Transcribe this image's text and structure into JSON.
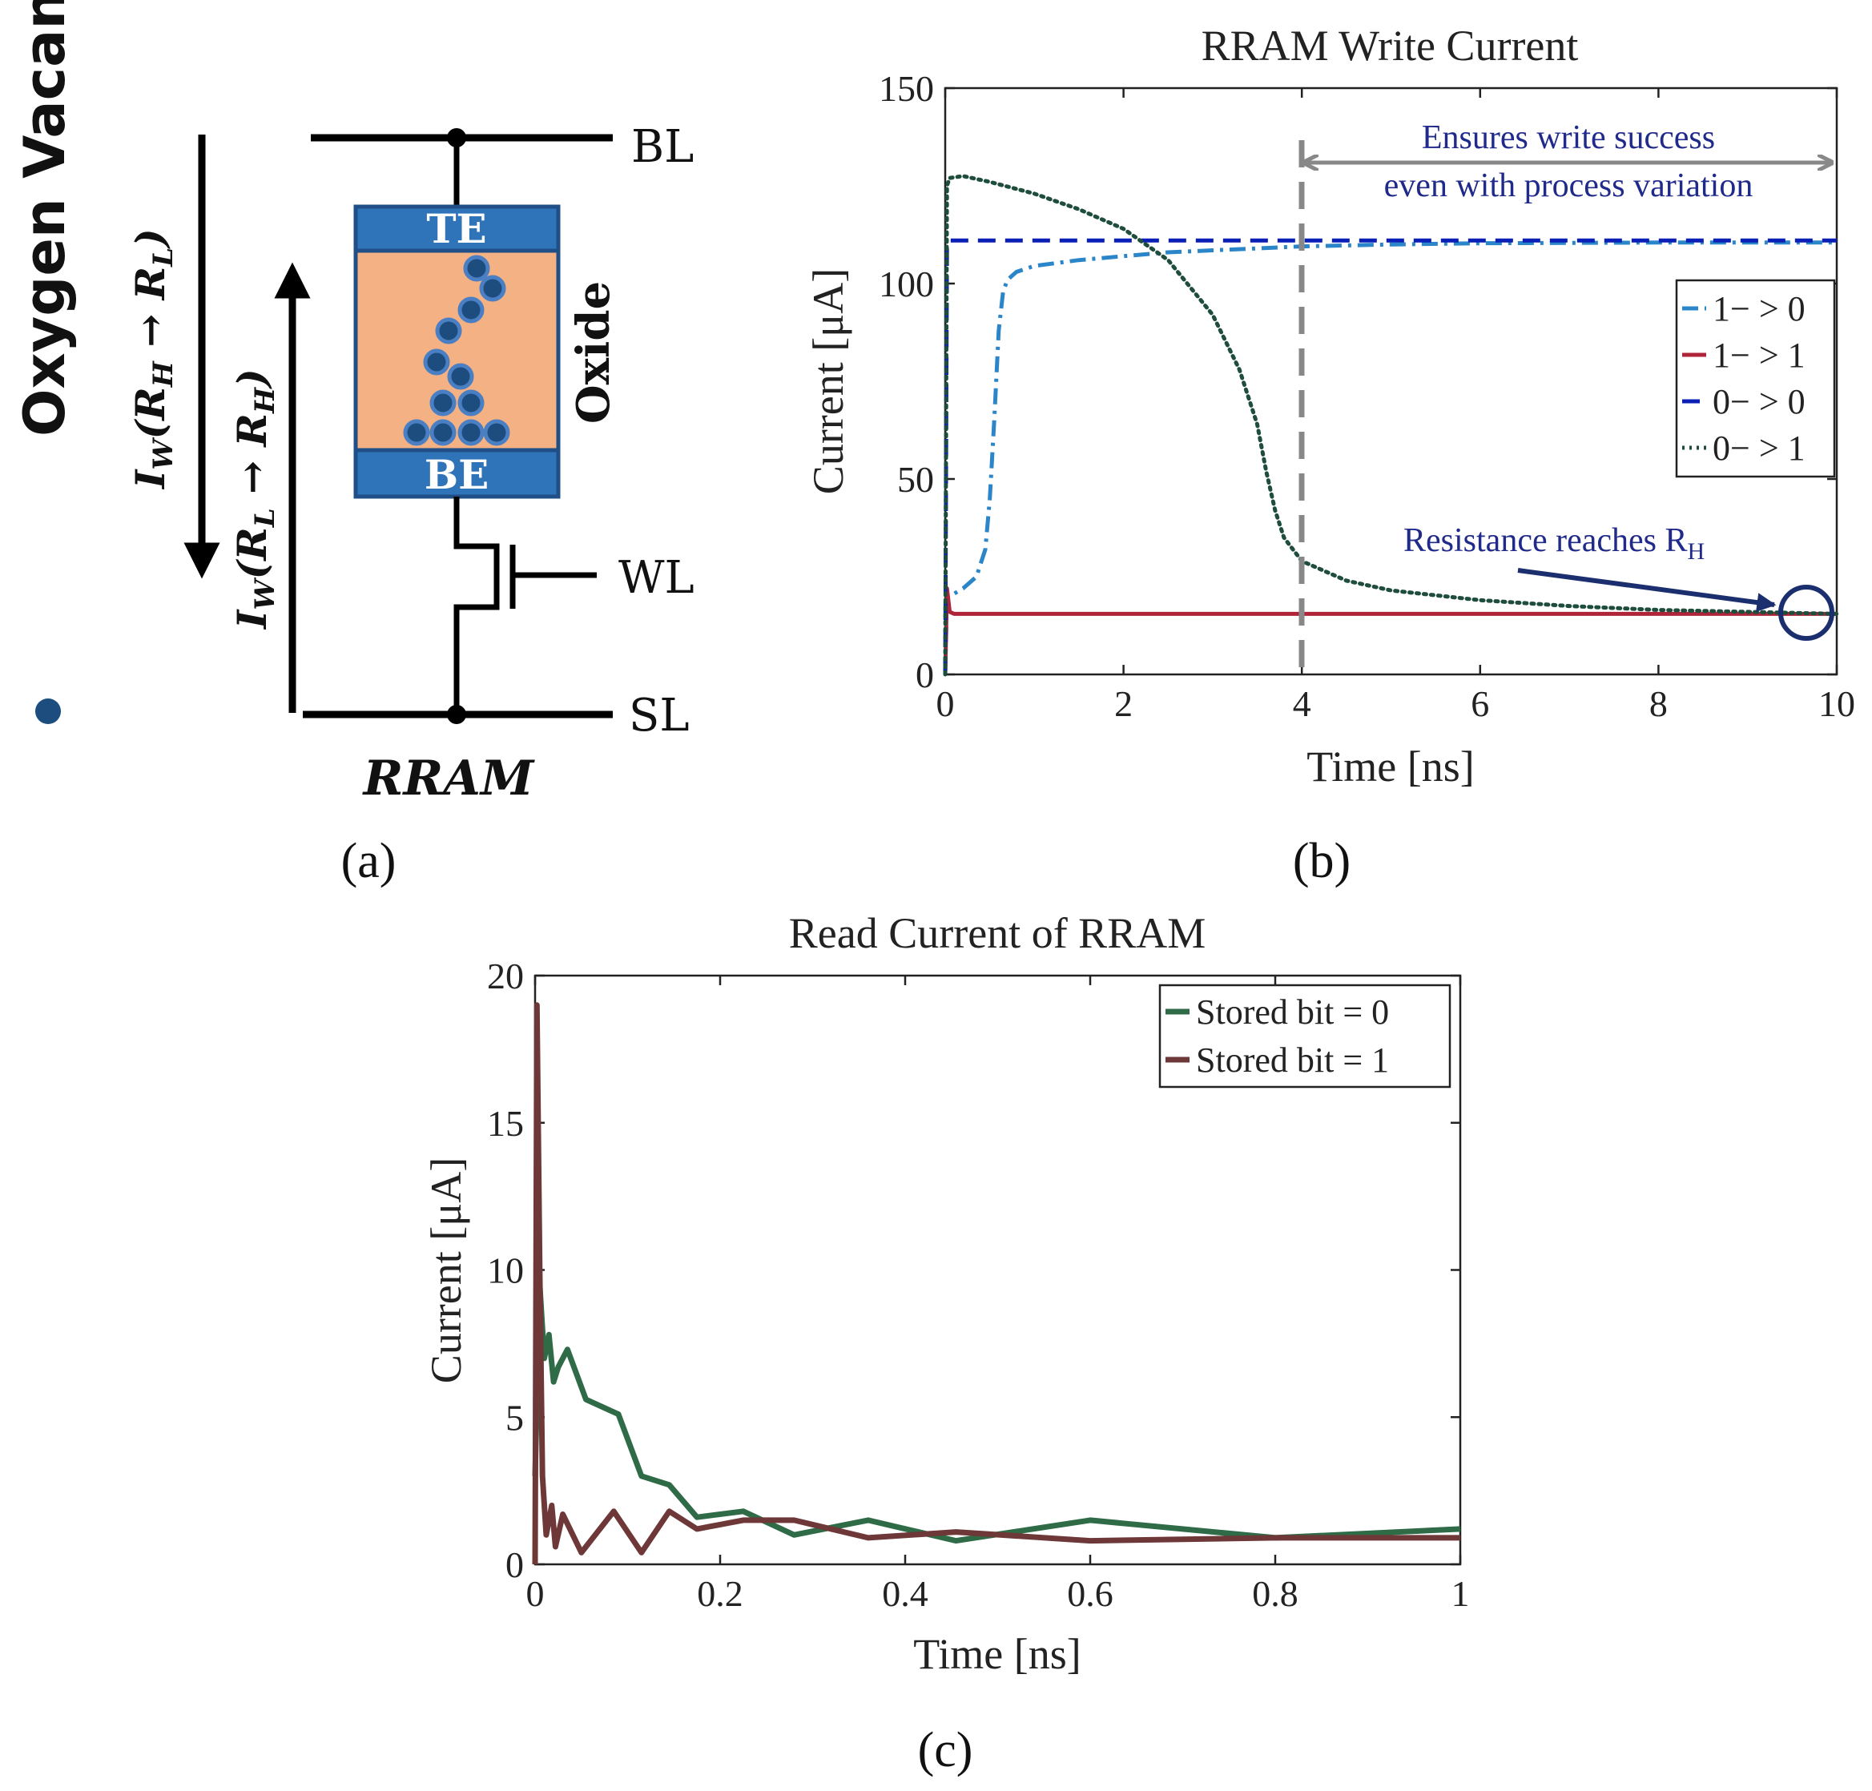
{
  "colors": {
    "cell_blue": "#2f73b8",
    "cell_border": "#1f4f86",
    "oxide": "#f4b183",
    "vacancy": "#1d4d7f",
    "vacancy_ring": "#4b7fc4",
    "annotation": "#1f2a8a",
    "dashed_marker": "#888888"
  },
  "panel_a": {
    "label": "(a)",
    "legend_text": "Oxygen Vacancy",
    "bl": "BL",
    "wl": "WL",
    "sl": "SL",
    "te": "TE",
    "be": "BE",
    "oxide": "Oxide",
    "device": "RRAM",
    "arrow_down_sub_from": "H",
    "arrow_down_sub_to": "L",
    "arrow_up_sub_from": "L",
    "arrow_up_sub_to": "H"
  },
  "panel_b_label": "(b)",
  "panel_c_label": "(c)",
  "annotations": {
    "write_success_line1": "Ensures write success",
    "write_success_line2": "even with process variation",
    "resistance": "Resistance reaches R",
    "resistance_sub": "H"
  },
  "chart_data": [
    {
      "type": "line",
      "title": "RRAM Write Current",
      "xlabel": "Time [ns]",
      "ylabel": "Current [μA]",
      "xlim": [
        0,
        10
      ],
      "ylim": [
        0,
        150
      ],
      "xticks": [
        0,
        2,
        4,
        6,
        8,
        10
      ],
      "yticks": [
        0,
        50,
        100,
        150
      ],
      "legend_position": "right",
      "series": [
        {
          "name": "1− > 0",
          "color": "#2a85c9",
          "style": "dashdot",
          "x": [
            0,
            0.02,
            0.05,
            0.2,
            0.35,
            0.45,
            0.5,
            0.55,
            0.6,
            0.65,
            0.7,
            0.8,
            1.0,
            1.5,
            2.0,
            2.5,
            3.0,
            3.5,
            4.0,
            5.0,
            6.0,
            8.0,
            10.0
          ],
          "y": [
            0,
            20,
            20,
            22,
            25,
            32,
            45,
            65,
            88,
            98,
            101,
            103,
            104.5,
            106,
            107,
            108,
            108.5,
            109,
            109.5,
            110,
            110.3,
            110.5,
            110.5
          ]
        },
        {
          "name": "1− > 1",
          "color": "#b0243a",
          "style": "solid",
          "x": [
            0,
            0.02,
            0.05,
            0.1,
            10
          ],
          "y": [
            0,
            22,
            16,
            15.5,
            15.5
          ]
        },
        {
          "name": "0− > 0",
          "color": "#0a1fb5",
          "style": "dashed",
          "x": [
            0,
            0.02,
            0.05,
            10
          ],
          "y": [
            0,
            110,
            111,
            111
          ]
        },
        {
          "name": "0− > 1",
          "color": "#1e4d3c",
          "style": "dotted",
          "x": [
            0,
            0.02,
            0.05,
            0.2,
            0.5,
            1.0,
            1.5,
            2.0,
            2.5,
            3.0,
            3.3,
            3.5,
            3.6,
            3.7,
            3.8,
            4.0,
            4.5,
            5.0,
            6.0,
            7.0,
            8.0,
            9.0,
            10.0
          ],
          "y": [
            0,
            125,
            127,
            127.5,
            126,
            123,
            119,
            114,
            106,
            92,
            78,
            64,
            52,
            42,
            35,
            29,
            24,
            21.5,
            19,
            17.5,
            16.5,
            16,
            15.5
          ]
        }
      ]
    },
    {
      "type": "line",
      "title": "Read Current of RRAM",
      "xlabel": "Time [ns]",
      "ylabel": "Current [μA]",
      "xlim": [
        0,
        1
      ],
      "ylim": [
        0,
        20
      ],
      "xticks": [
        0,
        0.2,
        0.4,
        0.6,
        0.8,
        1
      ],
      "yticks": [
        0,
        5,
        10,
        15,
        20
      ],
      "legend_position": "top-right",
      "series": [
        {
          "name": "Stored bit = 0",
          "color": "#2e6b46",
          "x": [
            0,
            0.005,
            0.01,
            0.015,
            0.02,
            0.025,
            0.035,
            0.055,
            0.09,
            0.115,
            0.145,
            0.175,
            0.225,
            0.28,
            0.36,
            0.455,
            0.6,
            0.8,
            1.0
          ],
          "y": [
            3,
            9.5,
            7,
            7.8,
            6.2,
            6.7,
            7.3,
            5.6,
            5.1,
            3.0,
            2.7,
            1.6,
            1.8,
            1.0,
            1.5,
            0.8,
            1.5,
            0.9,
            1.2
          ]
        },
        {
          "name": "Stored bit = 1",
          "color": "#6e3838",
          "x": [
            0,
            0.002,
            0.005,
            0.008,
            0.012,
            0.018,
            0.022,
            0.03,
            0.05,
            0.085,
            0.115,
            0.145,
            0.175,
            0.225,
            0.28,
            0.36,
            0.455,
            0.6,
            0.8,
            1.0
          ],
          "y": [
            0,
            19.0,
            10.0,
            3.0,
            1.0,
            2.0,
            0.6,
            1.7,
            0.4,
            1.8,
            0.4,
            1.8,
            1.2,
            1.5,
            1.5,
            0.9,
            1.1,
            0.8,
            0.9,
            0.9
          ]
        }
      ]
    }
  ]
}
